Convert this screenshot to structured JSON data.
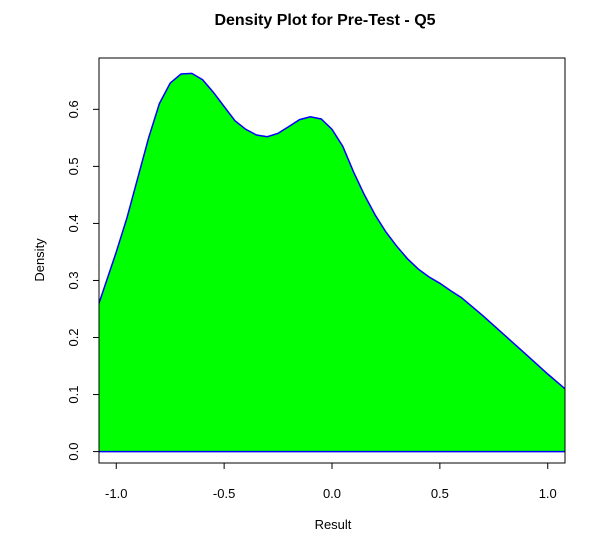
{
  "chart_data": {
    "type": "area",
    "title": "Density Plot for Pre-Test - Q5",
    "xlabel": "Result",
    "ylabel": "Density",
    "xlim": [
      -1.08,
      1.08
    ],
    "ylim": [
      -0.02,
      0.69
    ],
    "x_ticks": [
      -1.0,
      -0.5,
      0.0,
      0.5,
      1.0
    ],
    "x_tick_labels": [
      "-1.0",
      "-0.5",
      "0.0",
      "0.5",
      "1.0"
    ],
    "y_ticks": [
      0.0,
      0.1,
      0.2,
      0.3,
      0.4,
      0.5,
      0.6
    ],
    "y_tick_labels": [
      "0.0",
      "0.1",
      "0.2",
      "0.3",
      "0.4",
      "0.5",
      "0.6"
    ],
    "grid": false,
    "fill_color": "#00ff00",
    "line_color": "#0000ff",
    "series": [
      {
        "x": [
          -1.08,
          -1.0,
          -0.95,
          -0.9,
          -0.85,
          -0.8,
          -0.75,
          -0.7,
          -0.65,
          -0.6,
          -0.55,
          -0.5,
          -0.45,
          -0.4,
          -0.35,
          -0.3,
          -0.25,
          -0.2,
          -0.15,
          -0.1,
          -0.05,
          0.0,
          0.05,
          0.1,
          0.15,
          0.2,
          0.25,
          0.3,
          0.35,
          0.4,
          0.45,
          0.5,
          0.55,
          0.6,
          0.7,
          0.8,
          0.9,
          1.0,
          1.08
        ],
        "y": [
          0.26,
          0.35,
          0.41,
          0.48,
          0.55,
          0.61,
          0.646,
          0.662,
          0.663,
          0.652,
          0.63,
          0.605,
          0.58,
          0.565,
          0.555,
          0.552,
          0.558,
          0.57,
          0.582,
          0.587,
          0.583,
          0.565,
          0.535,
          0.49,
          0.45,
          0.415,
          0.385,
          0.36,
          0.338,
          0.32,
          0.306,
          0.295,
          0.282,
          0.27,
          0.238,
          0.204,
          0.17,
          0.136,
          0.11
        ]
      }
    ]
  }
}
